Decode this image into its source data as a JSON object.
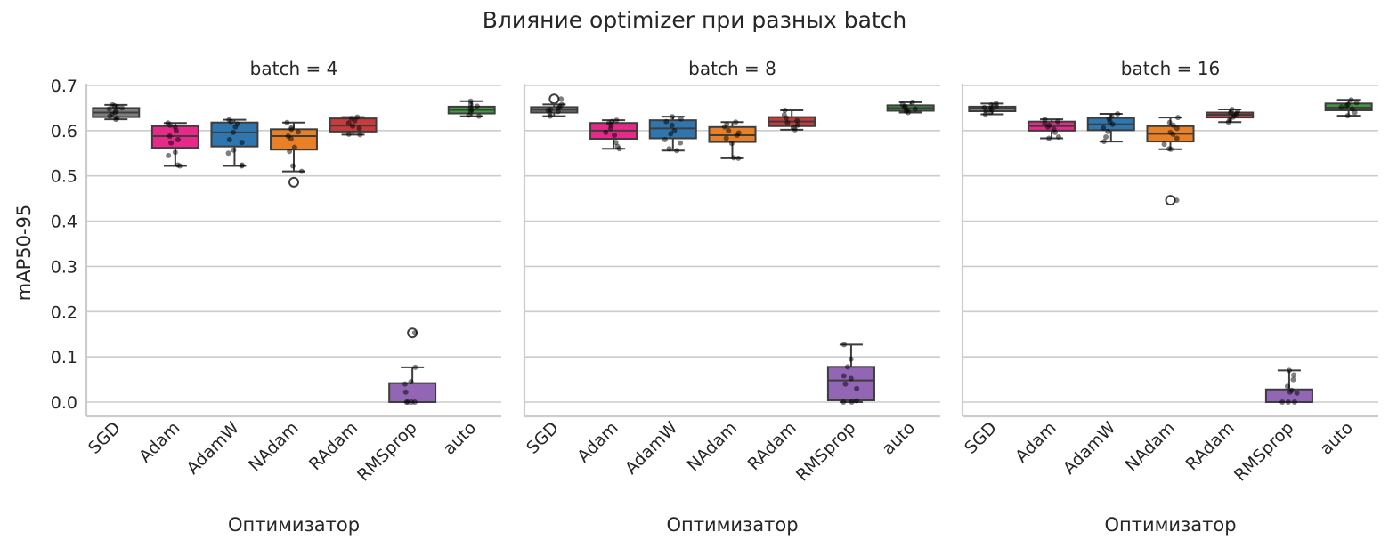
{
  "figure": {
    "title": "Влияние optimizer при разных batch"
  },
  "chart_data": {
    "type": "box",
    "title": "Влияние optimizer при разных batch",
    "xlabel": "Оптимизатор",
    "ylabel": "mAP50-95",
    "ylim": [
      -0.03,
      0.7
    ],
    "yticks": [
      "0.0",
      "0.1",
      "0.2",
      "0.3",
      "0.4",
      "0.5",
      "0.6",
      "0.7"
    ],
    "grid": true,
    "shared_y": true,
    "categories": [
      "SGD",
      "Adam",
      "AdamW",
      "NAdam",
      "RAdam",
      "RMSprop",
      "auto"
    ],
    "colors": {
      "SGD": "#7f7f7f",
      "Adam": "#e7298a",
      "AdamW": "#2f75ae",
      "NAdam": "#ea8025",
      "RAdam": "#c93a3a",
      "RMSprop": "#9266b5",
      "auto": "#3f9e3f"
    },
    "facets": [
      {
        "title": "batch = 4",
        "boxes": [
          {
            "name": "SGD",
            "q1": 0.63,
            "median": 0.64,
            "q3": 0.65,
            "whislo": 0.625,
            "whishi": 0.657,
            "fliers": []
          },
          {
            "name": "Adam",
            "q1": 0.562,
            "median": 0.588,
            "q3": 0.61,
            "whislo": 0.522,
            "whishi": 0.617,
            "fliers": []
          },
          {
            "name": "AdamW",
            "q1": 0.565,
            "median": 0.596,
            "q3": 0.618,
            "whislo": 0.522,
            "whishi": 0.624,
            "fliers": []
          },
          {
            "name": "NAdam",
            "q1": 0.558,
            "median": 0.588,
            "q3": 0.603,
            "whislo": 0.51,
            "whishi": 0.618,
            "fliers": [
              0.486
            ]
          },
          {
            "name": "RAdam",
            "q1": 0.598,
            "median": 0.611,
            "q3": 0.627,
            "whislo": 0.591,
            "whishi": 0.63,
            "fliers": []
          },
          {
            "name": "RMSprop",
            "q1": 0.0,
            "median": 0.0,
            "q3": 0.042,
            "whislo": 0.0,
            "whishi": 0.077,
            "fliers": [
              0.153
            ]
          },
          {
            "name": "auto",
            "q1": 0.638,
            "median": 0.646,
            "q3": 0.653,
            "whislo": 0.632,
            "whishi": 0.665,
            "fliers": []
          }
        ],
        "points": {
          "SGD": [
            0.625,
            0.628,
            0.632,
            0.636,
            0.64,
            0.644,
            0.648,
            0.65,
            0.652,
            0.655,
            0.657
          ],
          "Adam": [
            0.522,
            0.524,
            0.545,
            0.552,
            0.573,
            0.58,
            0.588,
            0.6,
            0.608,
            0.612,
            0.617
          ],
          "AdamW": [
            0.522,
            0.524,
            0.55,
            0.557,
            0.574,
            0.58,
            0.596,
            0.608,
            0.615,
            0.62,
            0.624
          ],
          "NAdam": [
            0.51,
            0.522,
            0.554,
            0.563,
            0.582,
            0.588,
            0.597,
            0.603,
            0.606,
            0.618
          ],
          "RAdam": [
            0.591,
            0.592,
            0.605,
            0.61,
            0.617,
            0.622,
            0.627,
            0.63
          ],
          "RMSprop": [
            0.0,
            0.0,
            0.0,
            0.0,
            0.022,
            0.04,
            0.045,
            0.077,
            0.153
          ],
          "auto": [
            0.632,
            0.634,
            0.642,
            0.646,
            0.65,
            0.654,
            0.658,
            0.665
          ]
        }
      },
      {
        "title": "batch = 8",
        "boxes": [
          {
            "name": "SGD",
            "q1": 0.64,
            "median": 0.646,
            "q3": 0.652,
            "whislo": 0.632,
            "whishi": 0.658,
            "fliers": [
              0.67
            ]
          },
          {
            "name": "Adam",
            "q1": 0.582,
            "median": 0.6,
            "q3": 0.617,
            "whislo": 0.56,
            "whishi": 0.623,
            "fliers": []
          },
          {
            "name": "AdamW",
            "q1": 0.583,
            "median": 0.605,
            "q3": 0.623,
            "whislo": 0.556,
            "whishi": 0.631,
            "fliers": []
          },
          {
            "name": "NAdam",
            "q1": 0.575,
            "median": 0.59,
            "q3": 0.608,
            "whislo": 0.539,
            "whishi": 0.619,
            "fliers": []
          },
          {
            "name": "RAdam",
            "q1": 0.61,
            "median": 0.62,
            "q3": 0.63,
            "whislo": 0.602,
            "whishi": 0.645,
            "fliers": []
          },
          {
            "name": "RMSprop",
            "q1": 0.004,
            "median": 0.048,
            "q3": 0.078,
            "whislo": 0.0,
            "whishi": 0.127,
            "fliers": []
          },
          {
            "name": "auto",
            "q1": 0.644,
            "median": 0.65,
            "q3": 0.656,
            "whislo": 0.64,
            "whishi": 0.663,
            "fliers": []
          }
        ],
        "points": {
          "SGD": [
            0.632,
            0.638,
            0.642,
            0.645,
            0.647,
            0.65,
            0.653,
            0.658,
            0.67
          ],
          "Adam": [
            0.56,
            0.565,
            0.574,
            0.59,
            0.596,
            0.605,
            0.612,
            0.617,
            0.62,
            0.623
          ],
          "AdamW": [
            0.556,
            0.56,
            0.573,
            0.58,
            0.593,
            0.6,
            0.612,
            0.62,
            0.626,
            0.631
          ],
          "NAdam": [
            0.539,
            0.54,
            0.572,
            0.583,
            0.59,
            0.595,
            0.6,
            0.608,
            0.614,
            0.619
          ],
          "RAdam": [
            0.602,
            0.606,
            0.612,
            0.618,
            0.622,
            0.628,
            0.635,
            0.645
          ],
          "RMSprop": [
            0.0,
            0.0,
            0.003,
            0.03,
            0.04,
            0.052,
            0.058,
            0.078,
            0.095,
            0.127
          ],
          "auto": [
            0.64,
            0.643,
            0.646,
            0.648,
            0.651,
            0.654,
            0.658,
            0.663
          ]
        }
      },
      {
        "title": "batch = 16",
        "boxes": [
          {
            "name": "SGD",
            "q1": 0.643,
            "median": 0.649,
            "q3": 0.653,
            "whislo": 0.636,
            "whishi": 0.66,
            "fliers": []
          },
          {
            "name": "Adam",
            "q1": 0.6,
            "median": 0.61,
            "q3": 0.62,
            "whislo": 0.583,
            "whishi": 0.625,
            "fliers": []
          },
          {
            "name": "AdamW",
            "q1": 0.601,
            "median": 0.614,
            "q3": 0.628,
            "whislo": 0.576,
            "whishi": 0.637,
            "fliers": []
          },
          {
            "name": "NAdam",
            "q1": 0.576,
            "median": 0.593,
            "q3": 0.61,
            "whislo": 0.559,
            "whishi": 0.629,
            "fliers": [
              0.446
            ]
          },
          {
            "name": "RAdam",
            "q1": 0.629,
            "median": 0.635,
            "q3": 0.64,
            "whislo": 0.619,
            "whishi": 0.647,
            "fliers": []
          },
          {
            "name": "RMSprop",
            "q1": 0.0,
            "median": 0.0,
            "q3": 0.028,
            "whislo": 0.0,
            "whishi": 0.07,
            "fliers": []
          },
          {
            "name": "auto",
            "q1": 0.645,
            "median": 0.651,
            "q3": 0.66,
            "whislo": 0.633,
            "whishi": 0.668,
            "fliers": []
          }
        ],
        "points": {
          "SGD": [
            0.636,
            0.64,
            0.644,
            0.647,
            0.649,
            0.651,
            0.654,
            0.657,
            0.66
          ],
          "Adam": [
            0.583,
            0.586,
            0.596,
            0.603,
            0.608,
            0.612,
            0.616,
            0.62,
            0.625
          ],
          "AdamW": [
            0.576,
            0.586,
            0.598,
            0.606,
            0.614,
            0.62,
            0.626,
            0.632,
            0.637
          ],
          "NAdam": [
            0.559,
            0.56,
            0.57,
            0.583,
            0.592,
            0.596,
            0.605,
            0.612,
            0.618,
            0.629,
            0.446
          ],
          "RAdam": [
            0.619,
            0.624,
            0.63,
            0.634,
            0.637,
            0.64,
            0.643,
            0.647
          ],
          "RMSprop": [
            0.0,
            0.0,
            0.0,
            0.02,
            0.022,
            0.026,
            0.035,
            0.05,
            0.06,
            0.07
          ],
          "auto": [
            0.633,
            0.64,
            0.648,
            0.652,
            0.655,
            0.658,
            0.662,
            0.668
          ]
        }
      }
    ]
  }
}
